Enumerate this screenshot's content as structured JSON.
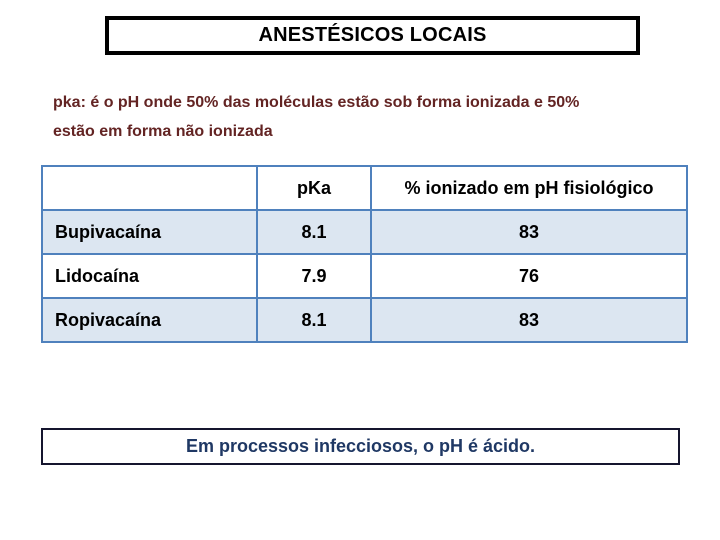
{
  "slide": {
    "title": "ANESTÉSICOS LOCAIS",
    "definition": {
      "text": "pka: é o pH onde 50% das moléculas estão sob forma ionizada e 50% estão em forma não ionizada",
      "lines": [
        "pka: é o pH onde 50% das moléculas estão sob forma ionizada e 50%",
        "estão em forma não ionizada"
      ]
    },
    "table": {
      "columns": [
        "",
        "pKa",
        "% ionizado em pH fisiológico"
      ],
      "rows": [
        {
          "name": "Bupivacaína",
          "pka": "8.1",
          "ionized": "83"
        },
        {
          "name": "Lidocaína",
          "pka": "7.9",
          "ionized": "76"
        },
        {
          "name": "Ropivacaína",
          "pka": "8.1",
          "ionized": "83"
        }
      ]
    },
    "footer_note": "Em processos infecciosos, o pH é ácido."
  },
  "theme": {
    "background": "#ffffff",
    "title_border": "#000000",
    "definition_text": "#632423",
    "table_border": "#4f81bd",
    "row_stripe": "#dce6f1",
    "table_text": "#000000",
    "footer_border": "#15152e",
    "footer_text": "#1f3864"
  }
}
